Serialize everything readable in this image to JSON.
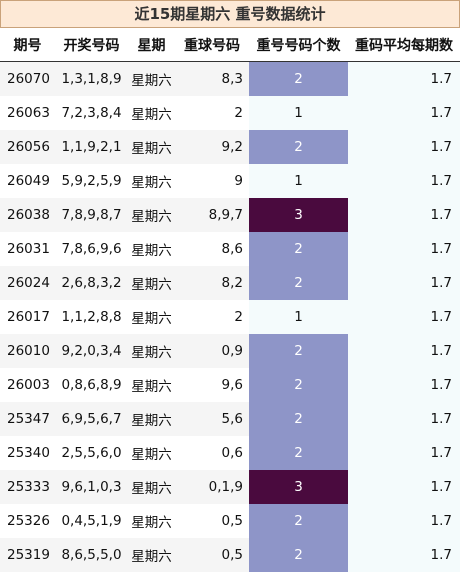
{
  "title": "近15期星期六 重号数据统计",
  "headers": {
    "issue": "期号",
    "numbers": "开奖号码",
    "weekday": "星期",
    "balls": "重球号码",
    "count": "重号号码个数",
    "avg": "重码平均每期数"
  },
  "colors": {
    "count_1": "#f4fbfc",
    "count_2": "#8e95c8",
    "count_3": "#4a0a3e"
  },
  "rows": [
    {
      "issue": "26070",
      "numbers": "1,3,1,8,9",
      "weekday": "星期六",
      "balls": "8,3",
      "count": "2",
      "avg": "1.7"
    },
    {
      "issue": "26063",
      "numbers": "7,2,3,8,4",
      "weekday": "星期六",
      "balls": "2",
      "count": "1",
      "avg": "1.7"
    },
    {
      "issue": "26056",
      "numbers": "1,1,9,2,1",
      "weekday": "星期六",
      "balls": "9,2",
      "count": "2",
      "avg": "1.7"
    },
    {
      "issue": "26049",
      "numbers": "5,9,2,5,9",
      "weekday": "星期六",
      "balls": "9",
      "count": "1",
      "avg": "1.7"
    },
    {
      "issue": "26038",
      "numbers": "7,8,9,8,7",
      "weekday": "星期六",
      "balls": "8,9,7",
      "count": "3",
      "avg": "1.7"
    },
    {
      "issue": "26031",
      "numbers": "7,8,6,9,6",
      "weekday": "星期六",
      "balls": "8,6",
      "count": "2",
      "avg": "1.7"
    },
    {
      "issue": "26024",
      "numbers": "2,6,8,3,2",
      "weekday": "星期六",
      "balls": "8,2",
      "count": "2",
      "avg": "1.7"
    },
    {
      "issue": "26017",
      "numbers": "1,1,2,8,8",
      "weekday": "星期六",
      "balls": "2",
      "count": "1",
      "avg": "1.7"
    },
    {
      "issue": "26010",
      "numbers": "9,2,0,3,4",
      "weekday": "星期六",
      "balls": "0,9",
      "count": "2",
      "avg": "1.7"
    },
    {
      "issue": "26003",
      "numbers": "0,8,6,8,9",
      "weekday": "星期六",
      "balls": "9,6",
      "count": "2",
      "avg": "1.7"
    },
    {
      "issue": "25347",
      "numbers": "6,9,5,6,7",
      "weekday": "星期六",
      "balls": "5,6",
      "count": "2",
      "avg": "1.7"
    },
    {
      "issue": "25340",
      "numbers": "2,5,5,6,0",
      "weekday": "星期六",
      "balls": "0,6",
      "count": "2",
      "avg": "1.7"
    },
    {
      "issue": "25333",
      "numbers": "9,6,1,0,3",
      "weekday": "星期六",
      "balls": "0,1,9",
      "count": "3",
      "avg": "1.7"
    },
    {
      "issue": "25326",
      "numbers": "0,4,5,1,9",
      "weekday": "星期六",
      "balls": "0,5",
      "count": "2",
      "avg": "1.7"
    },
    {
      "issue": "25319",
      "numbers": "8,6,5,5,0",
      "weekday": "星期六",
      "balls": "0,5",
      "count": "2",
      "avg": "1.7"
    }
  ]
}
